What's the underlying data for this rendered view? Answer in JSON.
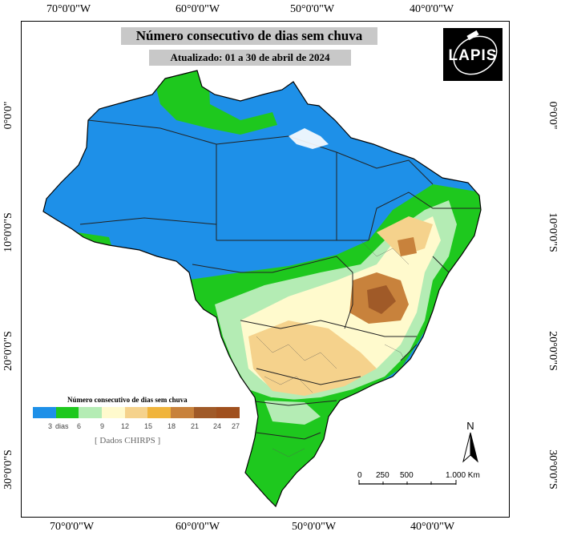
{
  "map": {
    "title": "Número consecutivo de dias sem chuva",
    "subtitle": "Atualizado: 01 a 30 de abril de 2024",
    "logo": "LAPIS",
    "axis": {
      "lon_top": [
        "70°0'0\"W",
        "60°0'0\"W",
        "50°0'0\"W",
        "40°0'0\"W"
      ],
      "lon_bottom": [
        "70°0'0\"W",
        "60°0'0\"W",
        "50°0'0\"W",
        "40°0'0\"W"
      ],
      "lat_left": [
        "0°0'0\"",
        "10°0'0\"S",
        "20°0'0\"S",
        "30°0'0\"S"
      ],
      "lat_right": [
        "0°0'0\"",
        "10°0'0\"S",
        "20°0'0\"S",
        "30°0'0\"S"
      ]
    },
    "legend": {
      "title": "Número consecutivo de dias sem chuva",
      "colors": [
        "#1e90e8",
        "#1ec81e",
        "#b4ecb4",
        "#fffacd",
        "#f5d28c",
        "#f0b43c",
        "#c8823c",
        "#a05a28",
        "#a0501e"
      ],
      "labels": [
        "3",
        "dias",
        "6",
        "9",
        "12",
        "15",
        "18",
        "21",
        "24",
        "27"
      ],
      "source": "[ Dados CHIRPS ]"
    },
    "scale": {
      "labels": [
        "0",
        "250",
        "500",
        "1.000 Km"
      ]
    },
    "north": "N",
    "colors": {
      "wet_blue": "#1e90e8",
      "green": "#1ec81e",
      "light_green": "#b4ecb4",
      "cream": "#fffacd",
      "tan": "#f5d28c",
      "brown": "#c8823c",
      "dark_brown": "#a05a28"
    }
  }
}
